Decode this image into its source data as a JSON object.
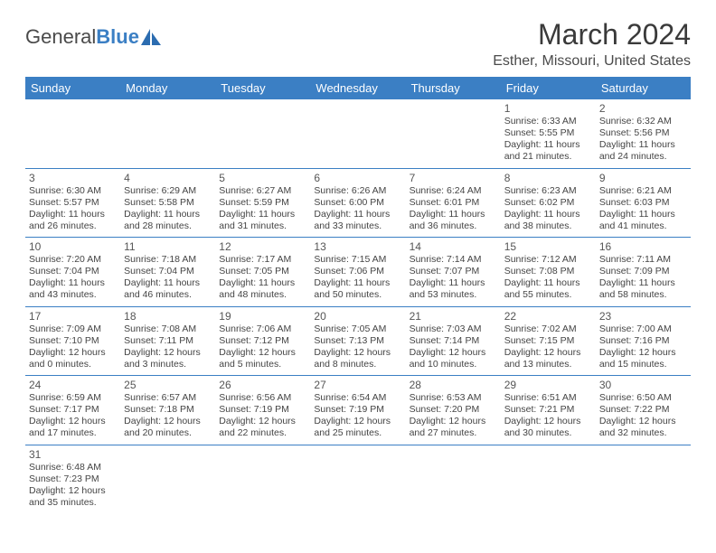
{
  "logo": {
    "text_general": "General",
    "text_blue": "Blue",
    "icon_color": "#2b6cb0"
  },
  "title": {
    "month_year": "March 2024",
    "location": "Esther, Missouri, United States"
  },
  "colors": {
    "header_bg": "#3b7fc4",
    "header_text": "#ffffff",
    "border": "#3b7fc4",
    "text": "#444444",
    "daynum": "#555555",
    "title_text": "#3a3a3a"
  },
  "day_headers": [
    "Sunday",
    "Monday",
    "Tuesday",
    "Wednesday",
    "Thursday",
    "Friday",
    "Saturday"
  ],
  "weeks": [
    [
      null,
      null,
      null,
      null,
      null,
      {
        "n": "1",
        "sr": "6:33 AM",
        "ss": "5:55 PM",
        "dh": "11",
        "dm": "21"
      },
      {
        "n": "2",
        "sr": "6:32 AM",
        "ss": "5:56 PM",
        "dh": "11",
        "dm": "24"
      }
    ],
    [
      {
        "n": "3",
        "sr": "6:30 AM",
        "ss": "5:57 PM",
        "dh": "11",
        "dm": "26"
      },
      {
        "n": "4",
        "sr": "6:29 AM",
        "ss": "5:58 PM",
        "dh": "11",
        "dm": "28"
      },
      {
        "n": "5",
        "sr": "6:27 AM",
        "ss": "5:59 PM",
        "dh": "11",
        "dm": "31"
      },
      {
        "n": "6",
        "sr": "6:26 AM",
        "ss": "6:00 PM",
        "dh": "11",
        "dm": "33"
      },
      {
        "n": "7",
        "sr": "6:24 AM",
        "ss": "6:01 PM",
        "dh": "11",
        "dm": "36"
      },
      {
        "n": "8",
        "sr": "6:23 AM",
        "ss": "6:02 PM",
        "dh": "11",
        "dm": "38"
      },
      {
        "n": "9",
        "sr": "6:21 AM",
        "ss": "6:03 PM",
        "dh": "11",
        "dm": "41"
      }
    ],
    [
      {
        "n": "10",
        "sr": "7:20 AM",
        "ss": "7:04 PM",
        "dh": "11",
        "dm": "43"
      },
      {
        "n": "11",
        "sr": "7:18 AM",
        "ss": "7:04 PM",
        "dh": "11",
        "dm": "46"
      },
      {
        "n": "12",
        "sr": "7:17 AM",
        "ss": "7:05 PM",
        "dh": "11",
        "dm": "48"
      },
      {
        "n": "13",
        "sr": "7:15 AM",
        "ss": "7:06 PM",
        "dh": "11",
        "dm": "50"
      },
      {
        "n": "14",
        "sr": "7:14 AM",
        "ss": "7:07 PM",
        "dh": "11",
        "dm": "53"
      },
      {
        "n": "15",
        "sr": "7:12 AM",
        "ss": "7:08 PM",
        "dh": "11",
        "dm": "55"
      },
      {
        "n": "16",
        "sr": "7:11 AM",
        "ss": "7:09 PM",
        "dh": "11",
        "dm": "58"
      }
    ],
    [
      {
        "n": "17",
        "sr": "7:09 AM",
        "ss": "7:10 PM",
        "dh": "12",
        "dm": "0"
      },
      {
        "n": "18",
        "sr": "7:08 AM",
        "ss": "7:11 PM",
        "dh": "12",
        "dm": "3"
      },
      {
        "n": "19",
        "sr": "7:06 AM",
        "ss": "7:12 PM",
        "dh": "12",
        "dm": "5"
      },
      {
        "n": "20",
        "sr": "7:05 AM",
        "ss": "7:13 PM",
        "dh": "12",
        "dm": "8"
      },
      {
        "n": "21",
        "sr": "7:03 AM",
        "ss": "7:14 PM",
        "dh": "12",
        "dm": "10"
      },
      {
        "n": "22",
        "sr": "7:02 AM",
        "ss": "7:15 PM",
        "dh": "12",
        "dm": "13"
      },
      {
        "n": "23",
        "sr": "7:00 AM",
        "ss": "7:16 PM",
        "dh": "12",
        "dm": "15"
      }
    ],
    [
      {
        "n": "24",
        "sr": "6:59 AM",
        "ss": "7:17 PM",
        "dh": "12",
        "dm": "17"
      },
      {
        "n": "25",
        "sr": "6:57 AM",
        "ss": "7:18 PM",
        "dh": "12",
        "dm": "20"
      },
      {
        "n": "26",
        "sr": "6:56 AM",
        "ss": "7:19 PM",
        "dh": "12",
        "dm": "22"
      },
      {
        "n": "27",
        "sr": "6:54 AM",
        "ss": "7:19 PM",
        "dh": "12",
        "dm": "25"
      },
      {
        "n": "28",
        "sr": "6:53 AM",
        "ss": "7:20 PM",
        "dh": "12",
        "dm": "27"
      },
      {
        "n": "29",
        "sr": "6:51 AM",
        "ss": "7:21 PM",
        "dh": "12",
        "dm": "30"
      },
      {
        "n": "30",
        "sr": "6:50 AM",
        "ss": "7:22 PM",
        "dh": "12",
        "dm": "32"
      }
    ],
    [
      {
        "n": "31",
        "sr": "6:48 AM",
        "ss": "7:23 PM",
        "dh": "12",
        "dm": "35"
      },
      null,
      null,
      null,
      null,
      null,
      null
    ]
  ],
  "labels": {
    "sunrise": "Sunrise:",
    "sunset": "Sunset:",
    "daylight": "Daylight:",
    "hours": "hours",
    "and": "and",
    "minutes": "minutes."
  }
}
